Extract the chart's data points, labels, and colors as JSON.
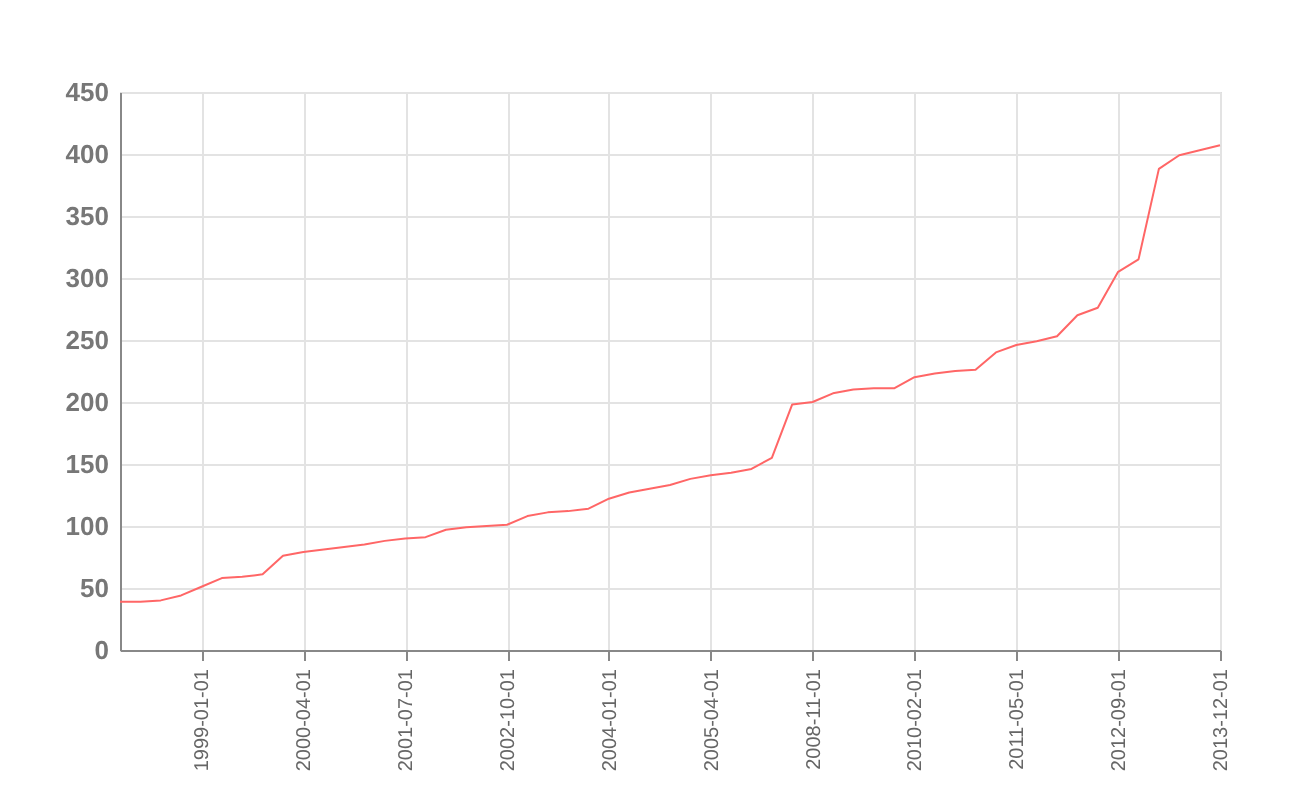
{
  "chart_data": {
    "type": "line",
    "categories": [
      null,
      null,
      null,
      null,
      "1999-01-01",
      null,
      null,
      null,
      null,
      "2000-04-01",
      null,
      null,
      null,
      null,
      "2001-07-01",
      null,
      null,
      null,
      null,
      "2002-10-01",
      null,
      null,
      null,
      null,
      "2004-01-01",
      null,
      null,
      null,
      null,
      "2005-04-01",
      null,
      null,
      null,
      null,
      "2008-11-01",
      null,
      null,
      null,
      null,
      "2010-02-01",
      null,
      null,
      null,
      null,
      "2011-05-01",
      null,
      null,
      null,
      null,
      "2012-09-01",
      null,
      null,
      null,
      null,
      "2013-12-01"
    ],
    "series": [
      {
        "color": "#ff6666",
        "values": [
          39,
          39,
          40,
          44,
          51,
          58,
          59,
          61,
          76,
          79,
          81,
          83,
          85,
          88,
          90,
          91,
          97,
          99,
          100,
          101,
          108,
          111,
          112,
          114,
          122,
          127,
          130,
          133,
          138,
          141,
          143,
          146,
          155,
          198,
          200,
          207,
          210,
          211,
          211,
          220,
          223,
          225,
          226,
          240,
          246,
          249,
          253,
          270,
          276,
          305,
          315,
          388,
          399,
          403,
          407
        ]
      }
    ],
    "ylim": [
      0,
      450
    ],
    "yticks": [
      0,
      50,
      100,
      150,
      200,
      250,
      300,
      350,
      400,
      450
    ],
    "grid": true
  }
}
